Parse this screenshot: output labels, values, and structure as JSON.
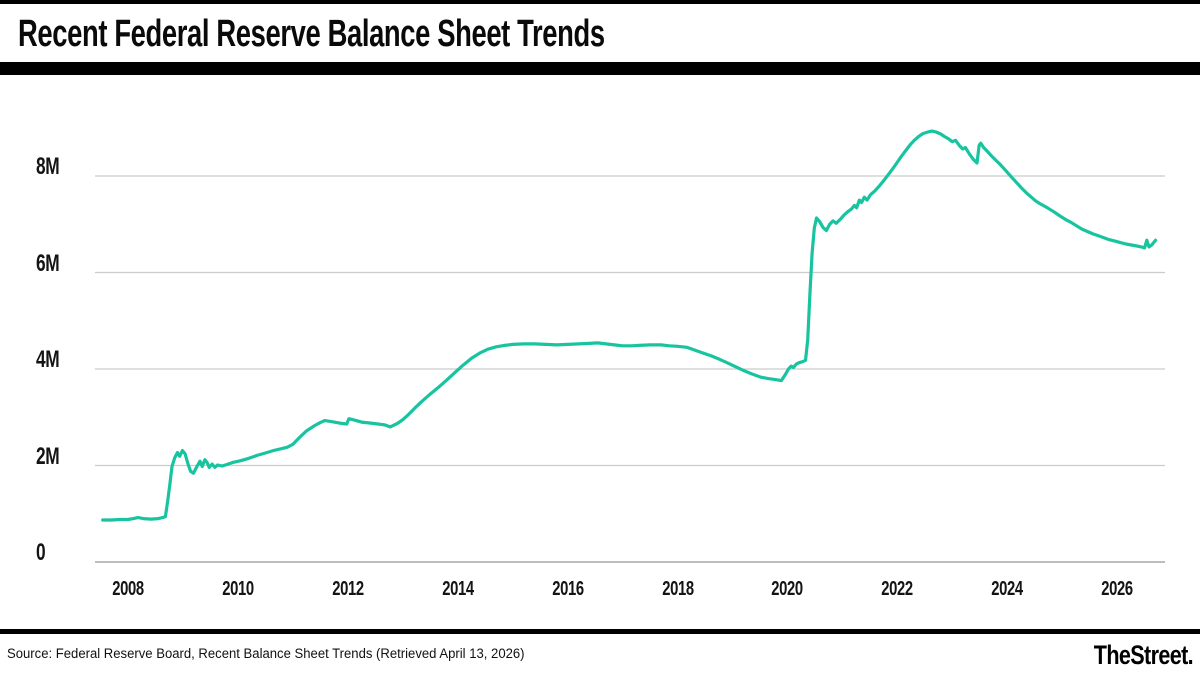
{
  "header": {
    "title": "Recent Federal Reserve Balance Sheet Trends"
  },
  "footer": {
    "source": "Source: Federal Reserve Board, Recent Balance Sheet Trends (Retrieved April 13, 2026)",
    "brand": "TheStreet."
  },
  "chart": {
    "line_color": "#18c4a0",
    "gridline_color": "#cccccc",
    "axis_line_color": "#a8a8a8",
    "y_ticks": [
      {
        "label": "0",
        "value": 0
      },
      {
        "label": "2M",
        "value": 2
      },
      {
        "label": "4M",
        "value": 4
      },
      {
        "label": "6M",
        "value": 6
      },
      {
        "label": "8M",
        "value": 8
      }
    ],
    "x_ticks": [
      "2008",
      "2010",
      "2012",
      "2014",
      "2016",
      "2018",
      "2020",
      "2022",
      "2024",
      "2026"
    ]
  },
  "chart_data": {
    "type": "line",
    "title": "Recent Federal Reserve Balance Sheet Trends",
    "xlabel": "",
    "ylabel": "",
    "x_tick_years": [
      2008,
      2010,
      2012,
      2014,
      2016,
      2018,
      2020,
      2022,
      2024,
      2026
    ],
    "y_tick_values": [
      0,
      2,
      4,
      6,
      8
    ],
    "y_tick_labels": [
      "0",
      "2M",
      "4M",
      "6M",
      "8M"
    ],
    "xlim": [
      2007.4,
      2026.9
    ],
    "ylim": [
      0,
      9.6
    ],
    "grid": "horizontal",
    "legend": "none",
    "series": [
      {
        "points": [
          [
            2007.54,
            0.87
          ],
          [
            2007.7,
            0.87
          ],
          [
            2007.85,
            0.88
          ],
          [
            2008.0,
            0.88
          ],
          [
            2008.1,
            0.9
          ],
          [
            2008.18,
            0.92
          ],
          [
            2008.28,
            0.9
          ],
          [
            2008.42,
            0.89
          ],
          [
            2008.55,
            0.9
          ],
          [
            2008.63,
            0.92
          ],
          [
            2008.68,
            0.94
          ],
          [
            2008.72,
            1.25
          ],
          [
            2008.76,
            1.6
          ],
          [
            2008.8,
            1.98
          ],
          [
            2008.85,
            2.16
          ],
          [
            2008.9,
            2.27
          ],
          [
            2008.94,
            2.19
          ],
          [
            2008.99,
            2.31
          ],
          [
            2009.04,
            2.24
          ],
          [
            2009.09,
            2.04
          ],
          [
            2009.14,
            1.88
          ],
          [
            2009.19,
            1.84
          ],
          [
            2009.26,
            1.99
          ],
          [
            2009.31,
            2.09
          ],
          [
            2009.35,
            1.98
          ],
          [
            2009.4,
            2.12
          ],
          [
            2009.44,
            2.06
          ],
          [
            2009.48,
            1.96
          ],
          [
            2009.53,
            2.03
          ],
          [
            2009.58,
            1.96
          ],
          [
            2009.63,
            2.01
          ],
          [
            2009.71,
            1.99
          ],
          [
            2009.8,
            2.02
          ],
          [
            2009.9,
            2.06
          ],
          [
            2010.05,
            2.1
          ],
          [
            2010.2,
            2.15
          ],
          [
            2010.35,
            2.21
          ],
          [
            2010.5,
            2.26
          ],
          [
            2010.65,
            2.31
          ],
          [
            2010.8,
            2.35
          ],
          [
            2010.9,
            2.38
          ],
          [
            2011.0,
            2.44
          ],
          [
            2011.13,
            2.59
          ],
          [
            2011.25,
            2.72
          ],
          [
            2011.4,
            2.83
          ],
          [
            2011.5,
            2.89
          ],
          [
            2011.58,
            2.93
          ],
          [
            2011.7,
            2.91
          ],
          [
            2011.8,
            2.89
          ],
          [
            2011.9,
            2.87
          ],
          [
            2011.98,
            2.86
          ],
          [
            2012.02,
            2.97
          ],
          [
            2012.12,
            2.94
          ],
          [
            2012.25,
            2.9
          ],
          [
            2012.4,
            2.88
          ],
          [
            2012.55,
            2.86
          ],
          [
            2012.68,
            2.84
          ],
          [
            2012.77,
            2.8
          ],
          [
            2012.9,
            2.87
          ],
          [
            2013.0,
            2.95
          ],
          [
            2013.1,
            3.05
          ],
          [
            2013.22,
            3.19
          ],
          [
            2013.35,
            3.33
          ],
          [
            2013.5,
            3.48
          ],
          [
            2013.65,
            3.62
          ],
          [
            2013.8,
            3.77
          ],
          [
            2013.95,
            3.93
          ],
          [
            2014.1,
            4.08
          ],
          [
            2014.25,
            4.22
          ],
          [
            2014.4,
            4.33
          ],
          [
            2014.55,
            4.41
          ],
          [
            2014.7,
            4.46
          ],
          [
            2014.85,
            4.49
          ],
          [
            2015.0,
            4.51
          ],
          [
            2015.2,
            4.52
          ],
          [
            2015.4,
            4.52
          ],
          [
            2015.6,
            4.51
          ],
          [
            2015.8,
            4.5
          ],
          [
            2016.0,
            4.51
          ],
          [
            2016.2,
            4.52
          ],
          [
            2016.4,
            4.53
          ],
          [
            2016.55,
            4.54
          ],
          [
            2016.7,
            4.52
          ],
          [
            2016.85,
            4.5
          ],
          [
            2017.0,
            4.48
          ],
          [
            2017.15,
            4.48
          ],
          [
            2017.3,
            4.49
          ],
          [
            2017.5,
            4.5
          ],
          [
            2017.7,
            4.5
          ],
          [
            2017.85,
            4.48
          ],
          [
            2018.0,
            4.47
          ],
          [
            2018.17,
            4.45
          ],
          [
            2018.32,
            4.39
          ],
          [
            2018.47,
            4.33
          ],
          [
            2018.62,
            4.27
          ],
          [
            2018.77,
            4.2
          ],
          [
            2018.92,
            4.12
          ],
          [
            2019.07,
            4.04
          ],
          [
            2019.22,
            3.96
          ],
          [
            2019.37,
            3.89
          ],
          [
            2019.52,
            3.83
          ],
          [
            2019.65,
            3.8
          ],
          [
            2019.78,
            3.78
          ],
          [
            2019.89,
            3.76
          ],
          [
            2019.96,
            3.88
          ],
          [
            2020.02,
            4.0
          ],
          [
            2020.07,
            4.06
          ],
          [
            2020.11,
            4.03
          ],
          [
            2020.16,
            4.1
          ],
          [
            2020.21,
            4.13
          ],
          [
            2020.27,
            4.15
          ],
          [
            2020.33,
            4.18
          ],
          [
            2020.37,
            4.6
          ],
          [
            2020.41,
            5.55
          ],
          [
            2020.45,
            6.4
          ],
          [
            2020.49,
            6.92
          ],
          [
            2020.53,
            7.13
          ],
          [
            2020.59,
            7.05
          ],
          [
            2020.65,
            6.93
          ],
          [
            2020.71,
            6.87
          ],
          [
            2020.77,
            7.0
          ],
          [
            2020.83,
            7.07
          ],
          [
            2020.89,
            7.02
          ],
          [
            2020.96,
            7.1
          ],
          [
            2021.03,
            7.19
          ],
          [
            2021.1,
            7.26
          ],
          [
            2021.17,
            7.32
          ],
          [
            2021.22,
            7.39
          ],
          [
            2021.26,
            7.34
          ],
          [
            2021.31,
            7.5
          ],
          [
            2021.35,
            7.45
          ],
          [
            2021.4,
            7.56
          ],
          [
            2021.45,
            7.5
          ],
          [
            2021.51,
            7.61
          ],
          [
            2021.59,
            7.69
          ],
          [
            2021.67,
            7.79
          ],
          [
            2021.75,
            7.9
          ],
          [
            2021.83,
            8.02
          ],
          [
            2021.91,
            8.14
          ],
          [
            2021.99,
            8.27
          ],
          [
            2022.07,
            8.4
          ],
          [
            2022.15,
            8.52
          ],
          [
            2022.23,
            8.64
          ],
          [
            2022.31,
            8.74
          ],
          [
            2022.39,
            8.82
          ],
          [
            2022.47,
            8.88
          ],
          [
            2022.55,
            8.91
          ],
          [
            2022.63,
            8.93
          ],
          [
            2022.71,
            8.91
          ],
          [
            2022.79,
            8.87
          ],
          [
            2022.87,
            8.81
          ],
          [
            2022.93,
            8.77
          ],
          [
            2023.0,
            8.71
          ],
          [
            2023.06,
            8.74
          ],
          [
            2023.13,
            8.63
          ],
          [
            2023.19,
            8.56
          ],
          [
            2023.24,
            8.59
          ],
          [
            2023.31,
            8.46
          ],
          [
            2023.38,
            8.35
          ],
          [
            2023.45,
            8.27
          ],
          [
            2023.49,
            8.64
          ],
          [
            2023.52,
            8.68
          ],
          [
            2023.57,
            8.59
          ],
          [
            2023.64,
            8.51
          ],
          [
            2023.71,
            8.42
          ],
          [
            2023.79,
            8.33
          ],
          [
            2023.87,
            8.24
          ],
          [
            2023.95,
            8.14
          ],
          [
            2024.03,
            8.04
          ],
          [
            2024.11,
            7.94
          ],
          [
            2024.19,
            7.84
          ],
          [
            2024.27,
            7.74
          ],
          [
            2024.35,
            7.65
          ],
          [
            2024.43,
            7.57
          ],
          [
            2024.51,
            7.49
          ],
          [
            2024.59,
            7.43
          ],
          [
            2024.67,
            7.38
          ],
          [
            2024.76,
            7.32
          ],
          [
            2024.86,
            7.25
          ],
          [
            2024.96,
            7.17
          ],
          [
            2025.06,
            7.1
          ],
          [
            2025.16,
            7.04
          ],
          [
            2025.26,
            6.97
          ],
          [
            2025.36,
            6.9
          ],
          [
            2025.46,
            6.85
          ],
          [
            2025.56,
            6.8
          ],
          [
            2025.66,
            6.76
          ],
          [
            2025.76,
            6.72
          ],
          [
            2025.86,
            6.68
          ],
          [
            2025.96,
            6.65
          ],
          [
            2026.06,
            6.62
          ],
          [
            2026.16,
            6.59
          ],
          [
            2026.26,
            6.57
          ],
          [
            2026.36,
            6.55
          ],
          [
            2026.44,
            6.53
          ],
          [
            2026.5,
            6.51
          ],
          [
            2026.54,
            6.67
          ],
          [
            2026.58,
            6.53
          ],
          [
            2026.63,
            6.57
          ],
          [
            2026.7,
            6.67
          ]
        ]
      }
    ]
  }
}
